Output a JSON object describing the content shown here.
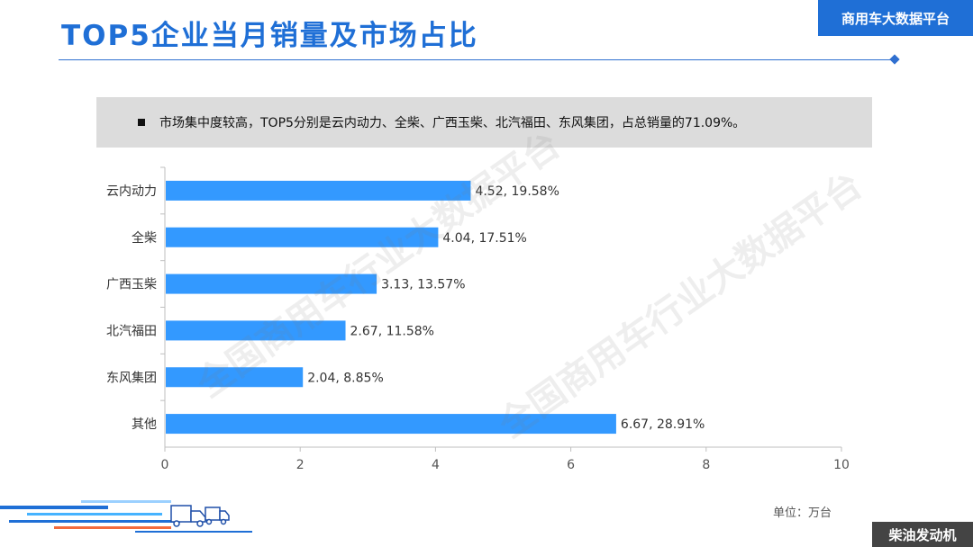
{
  "header": {
    "title": "TOP5企业当月销量及市场占比",
    "brand": "商用车大数据平台"
  },
  "summary": {
    "text": "市场集中度较高，TOP5分别是云内动力、全柴、广西玉柴、北汽福田、东风集团，占总销量的71.09%。"
  },
  "watermark": {
    "text1": "全国商用车行业大数据平台",
    "text2": "全国商用车行业大数据平台"
  },
  "chart_data": {
    "type": "bar",
    "orientation": "horizontal",
    "categories": [
      "云内动力",
      "全柴",
      "广西玉柴",
      "北汽福田",
      "东风集团",
      "其他"
    ],
    "values": [
      4.52,
      4.04,
      3.13,
      2.67,
      2.04,
      6.67
    ],
    "shares": [
      "19.58%",
      "17.51%",
      "13.57%",
      "11.58%",
      "8.85%",
      "28.91%"
    ],
    "data_labels": [
      "4.52, 19.58%",
      "4.04, 17.51%",
      "3.13, 13.57%",
      "2.67, 11.58%",
      "2.04, 8.85%",
      "6.67, 28.91%"
    ],
    "xlim": [
      0,
      10
    ],
    "xticks": [
      "0",
      "2",
      "4",
      "6",
      "8",
      "10"
    ],
    "bar_color": "#3399ff",
    "grid": false
  },
  "footer": {
    "unit": "单位：万台",
    "tag": "柴油发动机"
  }
}
